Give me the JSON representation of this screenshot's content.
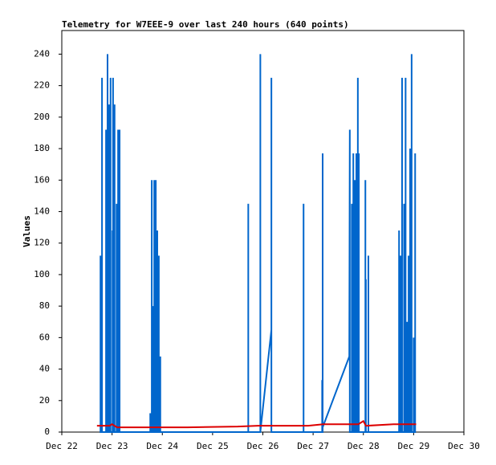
{
  "chart_data": {
    "type": "line",
    "title": "Telemetry for W7EEE-9 over last 240 hours (640 points)",
    "y_label": "Values",
    "xlim": [
      22,
      30
    ],
    "xticks": [
      {
        "value": 22,
        "label": "Dec 22"
      },
      {
        "value": 23,
        "label": "Dec 23"
      },
      {
        "value": 24,
        "label": "Dec 24"
      },
      {
        "value": 25,
        "label": "Dec 25"
      },
      {
        "value": 26,
        "label": "Dec 26"
      },
      {
        "value": 27,
        "label": "Dec 27"
      },
      {
        "value": 28,
        "label": "Dec 28"
      },
      {
        "value": 29,
        "label": "Dec 29"
      },
      {
        "value": 30,
        "label": "Dec 30"
      }
    ],
    "ylim": [
      0,
      255
    ],
    "yticks": [
      0,
      20,
      40,
      60,
      80,
      100,
      120,
      140,
      160,
      180,
      200,
      220,
      240
    ],
    "series": [
      {
        "color": "#0066cc",
        "x": [
          22.77,
          22.77,
          22.77,
          22.8,
          22.8,
          22.8,
          22.88,
          22.88,
          22.88,
          22.91,
          22.91,
          22.91,
          22.94,
          22.94,
          22.94,
          22.97,
          22.97,
          22.97,
          23.01,
          23.01,
          23.01,
          23.02,
          23.02,
          23.02,
          23.05,
          23.05,
          23.05,
          23.09,
          23.09,
          23.09,
          23.12,
          23.12,
          23.12,
          23.15,
          23.15,
          23.15,
          23.76,
          23.76,
          23.76,
          23.79,
          23.79,
          23.79,
          23.81,
          23.81,
          23.81,
          23.84,
          23.84,
          23.84,
          23.87,
          23.87,
          23.87,
          23.9,
          23.9,
          23.9,
          23.93,
          23.93,
          23.93,
          23.96,
          23.96,
          23.96,
          25.71,
          25.71,
          25.71,
          25.95,
          25.95,
          25.95,
          26.17,
          26.17,
          26.17,
          26.81,
          26.81,
          26.81,
          27.18,
          27.18,
          27.18,
          27.19,
          27.19,
          27.19,
          27.72,
          27.73,
          27.73,
          27.77,
          27.77,
          27.77,
          27.8,
          27.8,
          27.8,
          27.83,
          27.83,
          27.83,
          27.86,
          27.86,
          27.86,
          27.89,
          27.89,
          27.89,
          27.91,
          27.91,
          27.91,
          28.04,
          28.04,
          28.04,
          28.05,
          28.05,
          28.05,
          28.1,
          28.1,
          28.1,
          28.71,
          28.71,
          28.71,
          28.74,
          28.74,
          28.74,
          28.77,
          28.77,
          28.77,
          28.81,
          28.81,
          28.81,
          28.84,
          28.84,
          28.84,
          28.87,
          28.87,
          28.87,
          28.9,
          28.9,
          28.9,
          28.93,
          28.93,
          28.93,
          28.96,
          28.96,
          28.96,
          29.0,
          29.0,
          29.0,
          29.03,
          29.03,
          29.03
        ],
        "values": [
          0,
          112,
          0,
          0,
          225,
          0,
          0,
          192,
          0,
          0,
          240,
          0,
          0,
          208,
          0,
          0,
          225,
          0,
          0,
          128,
          0,
          0,
          225,
          0,
          0,
          208,
          0,
          0,
          145,
          0,
          0,
          192,
          0,
          0,
          192,
          0,
          0,
          12,
          0,
          0,
          160,
          0,
          0,
          80,
          0,
          0,
          160,
          0,
          0,
          160,
          0,
          0,
          128,
          0,
          0,
          112,
          0,
          0,
          48,
          0,
          0,
          145,
          0,
          0,
          240,
          0,
          65,
          225,
          0,
          0,
          145,
          0,
          0,
          33,
          0,
          0,
          177,
          3,
          48,
          192,
          0,
          0,
          145,
          0,
          0,
          177,
          0,
          0,
          160,
          0,
          0,
          177,
          0,
          0,
          225,
          0,
          0,
          177,
          0,
          0,
          160,
          0,
          0,
          97,
          0,
          0,
          112,
          0,
          0,
          128,
          0,
          0,
          112,
          0,
          0,
          225,
          0,
          0,
          145,
          0,
          0,
          225,
          0,
          0,
          70,
          0,
          0,
          112,
          0,
          0,
          180,
          0,
          0,
          240,
          0,
          0,
          60,
          0,
          0,
          177,
          0
        ]
      },
      {
        "color": "#dd0000",
        "x": [
          22.7,
          22.95,
          23.0,
          23.1,
          23.95,
          24.5,
          25.5,
          25.9,
          26.1,
          26.9,
          27.2,
          27.9,
          28.0,
          28.05,
          28.6,
          29.05
        ],
        "values": [
          4,
          4,
          5,
          3,
          3,
          3,
          3.5,
          4,
          4,
          4,
          5,
          5,
          7,
          4,
          5,
          5
        ]
      }
    ]
  }
}
